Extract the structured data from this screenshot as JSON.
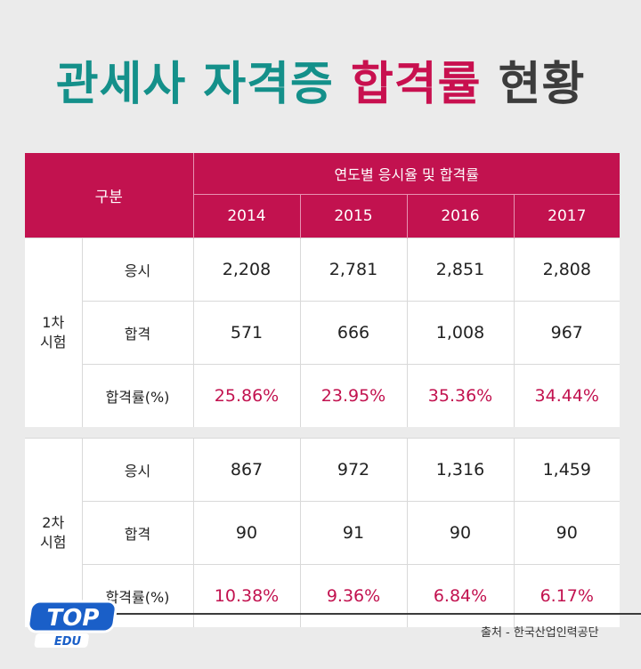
{
  "title": {
    "part1": "관세사 자격증",
    "part2": "합격률",
    "part3": "현황"
  },
  "table": {
    "corner_label": "구분",
    "group_header": "연도별 응시율 및 합격률",
    "years": [
      "2014",
      "2015",
      "2016",
      "2017"
    ],
    "sections": [
      {
        "label_line1": "1차",
        "label_line2": "시험",
        "rows": [
          {
            "label": "응시",
            "values": [
              "2,208",
              "2,781",
              "2,851",
              "2,808"
            ]
          },
          {
            "label": "합격",
            "values": [
              "571",
              "666",
              "1,008",
              "967"
            ]
          },
          {
            "label": "합격률(%)",
            "values": [
              "25.86%",
              "23.95%",
              "35.36%",
              "34.44%"
            ]
          }
        ]
      },
      {
        "label_line1": "2차",
        "label_line2": "시험",
        "rows": [
          {
            "label": "응시",
            "values": [
              "867",
              "972",
              "1,316",
              "1,459"
            ]
          },
          {
            "label": "합격",
            "values": [
              "90",
              "91",
              "90",
              "90"
            ]
          },
          {
            "label": "합격률(%)",
            "values": [
              "10.38%",
              "9.36%",
              "6.84%",
              "6.17%"
            ]
          }
        ]
      }
    ]
  },
  "source": "출처 - 한국산업인력공단",
  "logo": {
    "top_text": "TOP",
    "bottom_text": "EDU"
  },
  "colors": {
    "teal": "#14908a",
    "crimson": "#c2124f",
    "dark": "#3c3c3c",
    "logo_blue": "#1a5fc8"
  }
}
